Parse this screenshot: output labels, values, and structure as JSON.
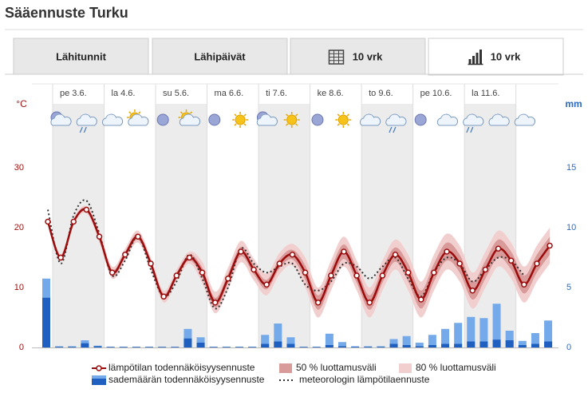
{
  "header": {
    "title": "Sääennuste Turku"
  },
  "tabs": [
    {
      "label": "Lähitunnit"
    },
    {
      "label": "Lähipäivät"
    },
    {
      "label": "10 vrk"
    },
    {
      "label": "10 vrk"
    }
  ],
  "active_tab": 3,
  "chart_data": {
    "type": "line",
    "y_label": "°C",
    "y2_label": "mm",
    "days": [
      "pe 3.6.",
      "la 4.6.",
      "su 5.6.",
      "ma 6.6.",
      "ti 7.6.",
      "ke 8.6.",
      "to 9.6.",
      "pe 10.6.",
      "la 11.6."
    ],
    "categories": [
      null,
      null,
      null,
      null,
      null,
      null,
      null,
      null,
      null,
      null,
      null,
      null,
      null,
      null,
      null,
      null,
      null,
      null,
      null,
      null,
      null,
      null,
      null,
      null,
      null,
      null,
      null,
      null,
      null,
      null,
      null,
      null,
      null,
      null,
      null,
      null,
      null,
      null,
      null,
      null
    ],
    "ylim": [
      0,
      40
    ],
    "yticks": [
      0,
      10,
      20,
      30
    ],
    "y2lim": [
      0,
      20
    ],
    "y2ticks": [
      0,
      5,
      10,
      15
    ],
    "series": [
      {
        "name": "lämpötilan todennäköisyysennuste",
        "type": "line",
        "color": "#9b0c0c",
        "markers": true,
        "values": [
          21,
          15,
          21,
          23,
          18.5,
          12.5,
          15.5,
          18.5,
          14,
          8.5,
          12,
          15,
          12.5,
          7.5,
          11.5,
          16,
          13,
          10.5,
          14,
          15.5,
          12.5,
          7.5,
          12,
          16,
          12,
          7.5,
          12,
          15.5,
          12.5,
          8,
          12.5,
          16,
          14,
          9.5,
          13,
          16.5,
          14.5,
          10.5,
          14,
          17
        ]
      },
      {
        "name": "50 % luottamusväli",
        "type": "band",
        "color": "#d99a9a",
        "low": [
          20.7,
          14.7,
          20.7,
          22.7,
          18,
          12,
          15,
          18,
          13.5,
          8,
          11.5,
          14.5,
          11.7,
          6.7,
          10.7,
          15.2,
          12.2,
          9.7,
          13.2,
          14.7,
          11.3,
          6.3,
          10.8,
          14.8,
          10.8,
          6.3,
          10.8,
          14.3,
          11,
          6.5,
          11,
          14.5,
          12.5,
          8,
          11.5,
          15,
          13,
          9,
          12.5,
          15.5
        ],
        "high": [
          21.3,
          15.3,
          21.3,
          23.3,
          19,
          13,
          16,
          19,
          14.5,
          9,
          12.5,
          15.5,
          13.3,
          8.3,
          12.3,
          16.8,
          13.8,
          11.3,
          14.8,
          16.3,
          13.7,
          8.7,
          13.2,
          17.2,
          13.2,
          8.7,
          13.2,
          16.7,
          14,
          9.5,
          14,
          17.5,
          15.5,
          11,
          14.5,
          18,
          16,
          12,
          15.5,
          18.5
        ]
      },
      {
        "name": "80 % luottamusväli",
        "type": "band",
        "color": "#f2cfcf",
        "low": [
          20.4,
          14.4,
          20.4,
          22.4,
          17.5,
          11.5,
          14.5,
          17.5,
          13,
          7.5,
          11,
          14,
          10.7,
          5.7,
          9.7,
          14.2,
          11.2,
          8.7,
          12.2,
          13.7,
          10,
          5,
          9.5,
          13.5,
          9.5,
          5,
          9.5,
          13,
          9.5,
          5,
          9.5,
          13,
          11,
          6.5,
          10,
          13.5,
          11.5,
          7.5,
          11,
          14
        ],
        "high": [
          21.6,
          15.6,
          21.6,
          23.6,
          19.5,
          13.5,
          16.5,
          19.5,
          15,
          9.5,
          13,
          16,
          14.3,
          9.3,
          13.3,
          17.8,
          14.8,
          12.3,
          15.8,
          17.3,
          15,
          10,
          14.5,
          18.5,
          14.5,
          10,
          14.5,
          18,
          15.5,
          11,
          15.5,
          19,
          17,
          12.5,
          16,
          19.5,
          17.5,
          13.5,
          17,
          20
        ]
      },
      {
        "name": "sademäärän todennäköisyysennuste",
        "type": "bar",
        "axis": "y2",
        "color": "#1f5fbf",
        "upper_color": "#74a9ea",
        "values": [
          4.15,
          0.05,
          0.05,
          0.35,
          0.1,
          0.05,
          0.05,
          0.05,
          0.05,
          0.05,
          0.05,
          0.75,
          0.4,
          0.05,
          0.05,
          0.05,
          0.05,
          0.3,
          0.5,
          0.3,
          0.05,
          0.05,
          0.2,
          0.1,
          0.05,
          0.05,
          0.05,
          0.3,
          0.2,
          0.1,
          0.2,
          0.3,
          0.3,
          0.5,
          0.5,
          0.65,
          0.6,
          0.2,
          0.3,
          0.5
        ],
        "upper": [
          5.75,
          0.1,
          0.1,
          0.6,
          0.15,
          0.05,
          0.05,
          0.05,
          0.05,
          0.05,
          0.05,
          1.55,
          0.85,
          0.05,
          0.05,
          0.05,
          0.05,
          1.05,
          2.0,
          0.85,
          0.05,
          0.05,
          1.15,
          0.45,
          0.1,
          0.1,
          0.1,
          0.7,
          0.95,
          0.4,
          1.05,
          1.55,
          2.05,
          2.55,
          2.45,
          3.65,
          1.4,
          0.55,
          1.2,
          2.25
        ]
      },
      {
        "name": "meteorologin lämpötilaennuste",
        "type": "line",
        "dash": true,
        "color": "#333333",
        "values": [
          23,
          14,
          22,
          24.5,
          19,
          12,
          14.5,
          18.5,
          13,
          8.5,
          11,
          15.5,
          11.5,
          6.5,
          10,
          16.5,
          14,
          12.5,
          13.5,
          14,
          10.5,
          9.5,
          11,
          14,
          13.5,
          11.5,
          13.5,
          15,
          11.5,
          8.5,
          12.5,
          15,
          14,
          11,
          13,
          15,
          14.5,
          12,
          null,
          null
        ]
      }
    ]
  }
}
